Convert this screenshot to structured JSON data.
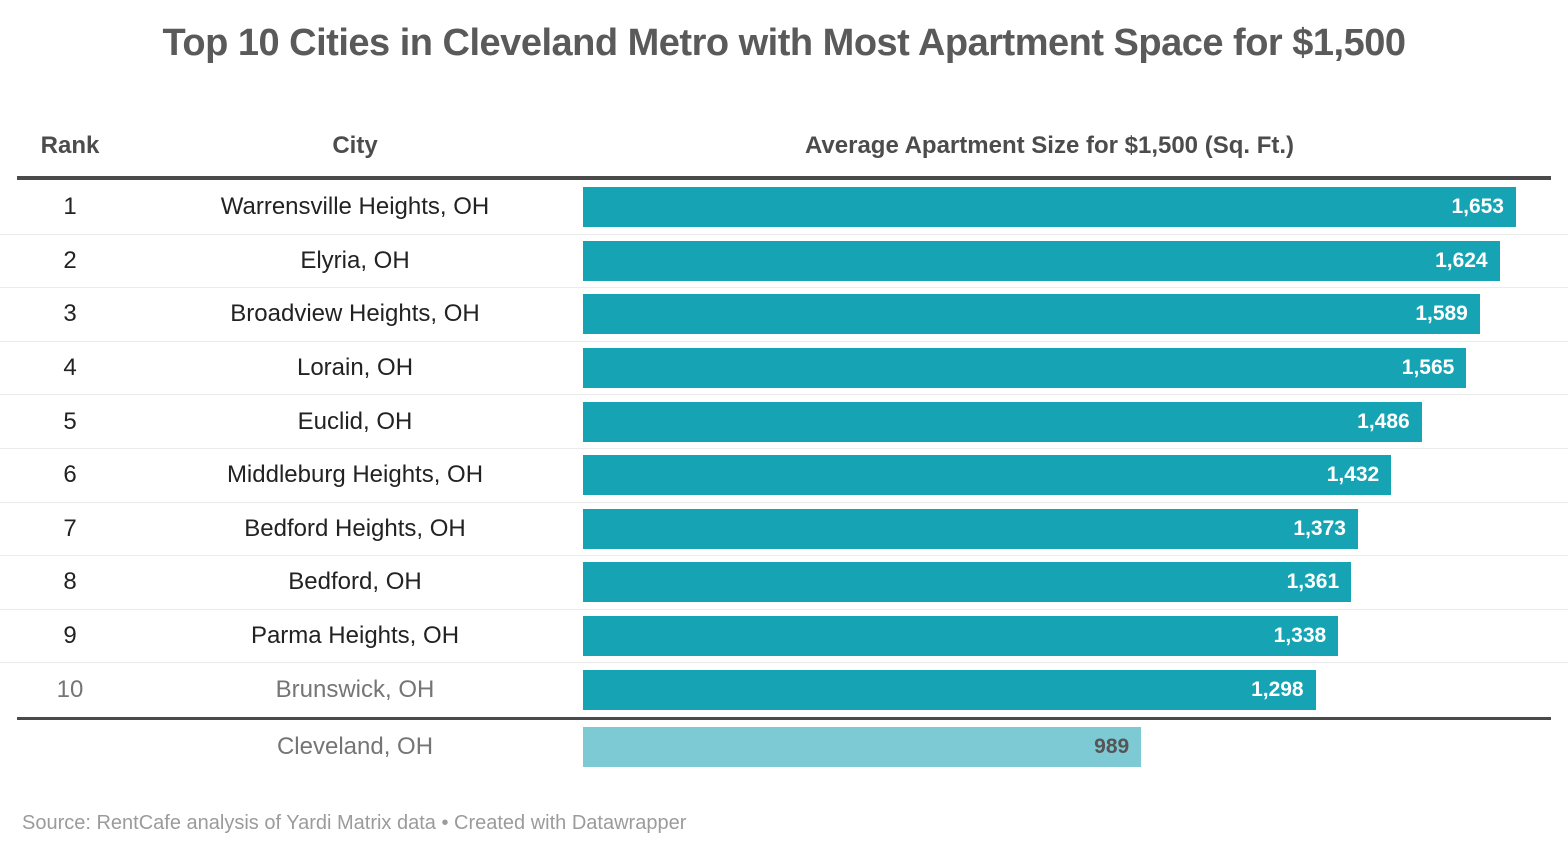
{
  "title": "Top 10 Cities in Cleveland Metro with Most Apartment Space for $1,500",
  "columns": {
    "rank": "Rank",
    "city": "City",
    "value": "Average Apartment Size for $1,500 (Sq. Ft.)"
  },
  "source_note": "Source: RentCafe analysis of Yardi Matrix data • Created with Datawrapper",
  "colors": {
    "title": "#5a5a5a",
    "header": "#4c4c4c",
    "rule": "#4a4a4a",
    "row_separator": "#ececec",
    "row_text": "#222222",
    "muted_row_text": "#757575",
    "bar": "#16a4b4",
    "bar_label": "#ffffff",
    "benchmark_bar": "#7dcad4",
    "benchmark_label": "#555555",
    "footer_text": "#9b9b9b"
  },
  "chart_data": {
    "type": "bar",
    "orientation": "horizontal",
    "title": "Top 10 Cities in Cleveland Metro with Most Apartment Space for $1,500",
    "xlabel": "Average Apartment Size for $1,500 (Sq. Ft.)",
    "ylabel": "City",
    "xlim": [
      0,
      1653
    ],
    "grid": false,
    "value_labels": "inside-end",
    "rows": [
      {
        "rank": "1",
        "city": "Warrensville Heights, OH",
        "value": 1653,
        "label": "1,653",
        "muted": false
      },
      {
        "rank": "2",
        "city": "Elyria, OH",
        "value": 1624,
        "label": "1,624",
        "muted": false
      },
      {
        "rank": "3",
        "city": "Broadview Heights, OH",
        "value": 1589,
        "label": "1,589",
        "muted": false
      },
      {
        "rank": "4",
        "city": "Lorain, OH",
        "value": 1565,
        "label": "1,565",
        "muted": false
      },
      {
        "rank": "5",
        "city": "Euclid, OH",
        "value": 1486,
        "label": "1,486",
        "muted": false
      },
      {
        "rank": "6",
        "city": "Middleburg Heights, OH",
        "value": 1432,
        "label": "1,432",
        "muted": false
      },
      {
        "rank": "7",
        "city": "Bedford Heights, OH",
        "value": 1373,
        "label": "1,373",
        "muted": false
      },
      {
        "rank": "8",
        "city": "Bedford, OH",
        "value": 1361,
        "label": "1,361",
        "muted": false
      },
      {
        "rank": "9",
        "city": "Parma Heights, OH",
        "value": 1338,
        "label": "1,338",
        "muted": false
      },
      {
        "rank": "10",
        "city": "Brunswick, OH",
        "value": 1298,
        "label": "1,298",
        "muted": true
      }
    ],
    "benchmark": {
      "rank": "",
      "city": "Cleveland, OH",
      "value": 989,
      "label": "989"
    }
  }
}
